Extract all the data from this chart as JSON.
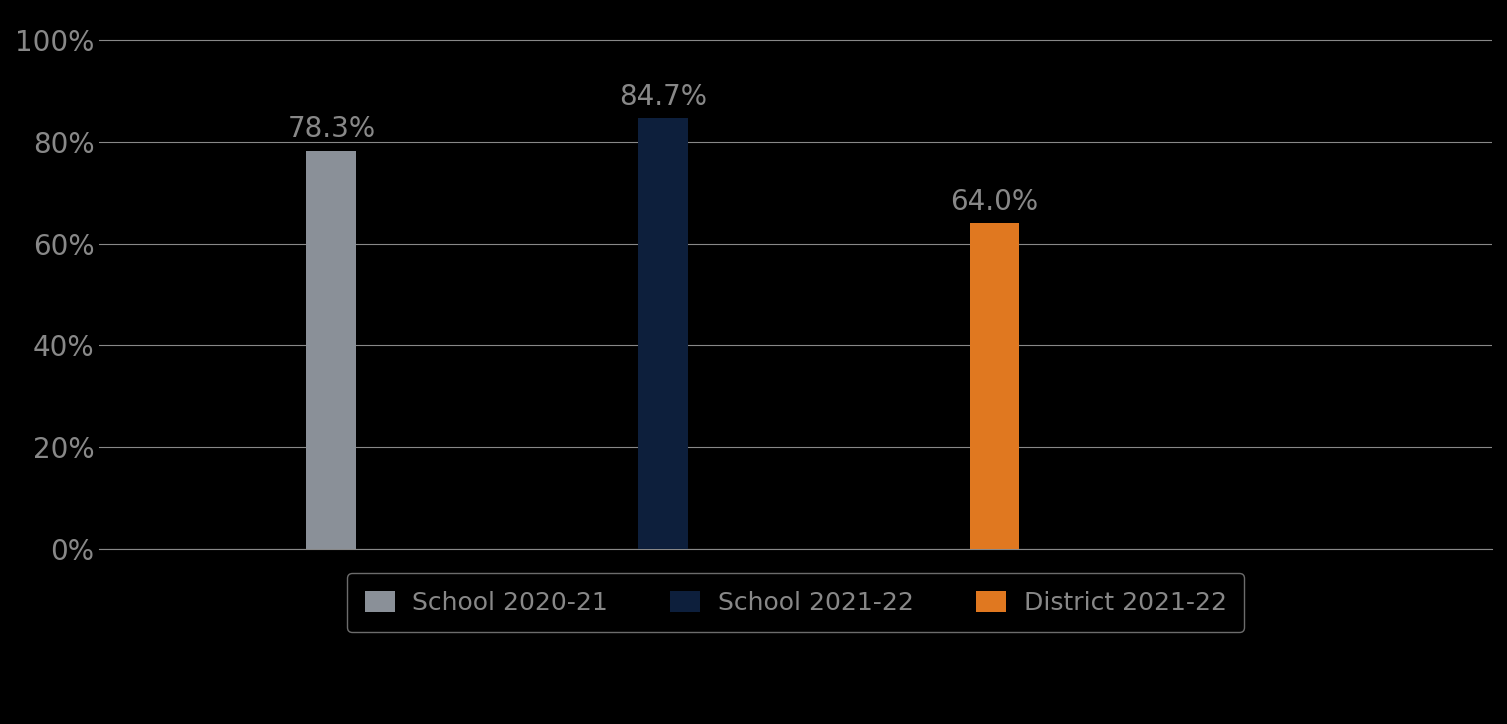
{
  "categories": [
    "School 2020-21",
    "School 2021-22",
    "District 2021-22"
  ],
  "values": [
    0.783,
    0.847,
    0.64
  ],
  "bar_colors": [
    "#8A9098",
    "#0D1F3C",
    "#E07820"
  ],
  "label_texts": [
    "78.3%",
    "84.7%",
    "64.0%"
  ],
  "ylim": [
    0,
    1.05
  ],
  "yticks": [
    0.0,
    0.2,
    0.4,
    0.6,
    0.8,
    1.0
  ],
  "ytick_labels": [
    "0%",
    "20%",
    "40%",
    "60%",
    "80%",
    "100%"
  ],
  "background_color": "#000000",
  "grid_color": "#888888",
  "text_color": "#888888",
  "label_fontsize": 20,
  "tick_fontsize": 20,
  "legend_fontsize": 18,
  "bar_width": 0.15,
  "bar_positions": [
    1,
    2,
    3
  ],
  "xlim": [
    0.3,
    4.5
  ]
}
